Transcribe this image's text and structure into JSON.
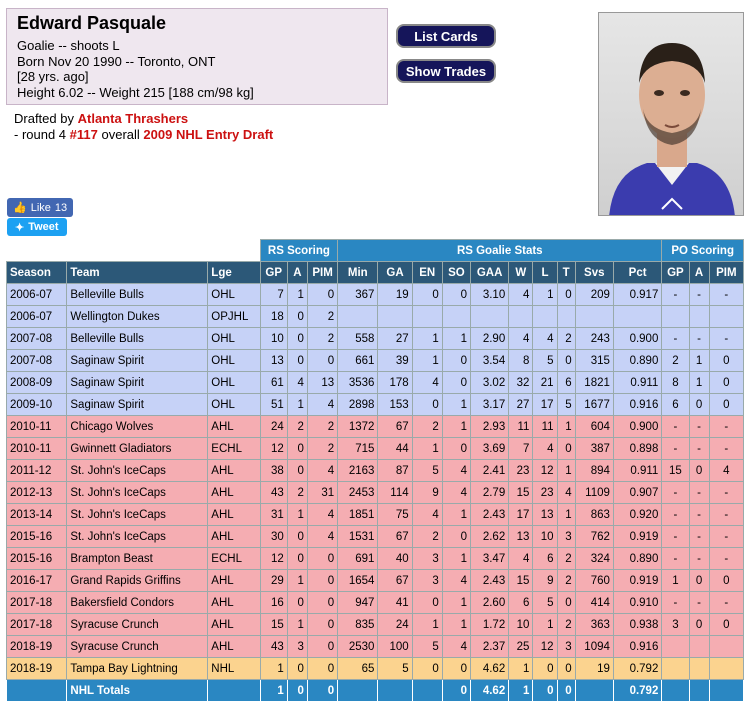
{
  "player": {
    "name": "Edward Pasquale",
    "position_line": "Goalie -- shoots L",
    "born_line": "Born Nov 20 1990 -- Toronto, ONT",
    "age_line": "[28 yrs. ago]",
    "size_line": "Height 6.02 -- Weight 215 [188 cm/98 kg]"
  },
  "draft": {
    "prefix": "Drafted by",
    "team": "Atlanta Thrashers",
    "round_text": "- round 4",
    "pick": "#117",
    "overall": "overall",
    "draft_name": "2009 NHL Entry Draft"
  },
  "buttons": {
    "list_cards": "List Cards",
    "show_trades": "Show Trades"
  },
  "social": {
    "like_label": "Like",
    "like_count": "13",
    "tweet_label": "Tweet"
  },
  "table": {
    "groups": {
      "rs_scoring": "RS Scoring",
      "rs_goalie": "RS Goalie Stats",
      "po_scoring": "PO Scoring"
    },
    "headers": [
      "Season",
      "Team",
      "Lge",
      "GP",
      "A",
      "PIM",
      "Min",
      "GA",
      "EN",
      "SO",
      "GAA",
      "W",
      "L",
      "T",
      "Svs",
      "Pct",
      "GP",
      "A",
      "PIM"
    ],
    "rows": [
      {
        "cls": "ohl",
        "c": [
          "2006-07",
          "Belleville Bulls",
          "OHL",
          "7",
          "1",
          "0",
          "367",
          "19",
          "0",
          "0",
          "3.10",
          "4",
          "1",
          "0",
          "209",
          "0.917",
          "-",
          "-",
          "-"
        ]
      },
      {
        "cls": "opj",
        "c": [
          "2006-07",
          "Wellington Dukes",
          "OPJHL",
          "18",
          "0",
          "2",
          "",
          "",
          "",
          "",
          "",
          "",
          "",
          "",
          "",
          "",
          "",
          "",
          ""
        ]
      },
      {
        "cls": "ohl",
        "c": [
          "2007-08",
          "Belleville Bulls",
          "OHL",
          "10",
          "0",
          "2",
          "558",
          "27",
          "1",
          "1",
          "2.90",
          "4",
          "4",
          "2",
          "243",
          "0.900",
          "-",
          "-",
          "-"
        ]
      },
      {
        "cls": "ohl",
        "c": [
          "2007-08",
          "Saginaw Spirit",
          "OHL",
          "13",
          "0",
          "0",
          "661",
          "39",
          "1",
          "0",
          "3.54",
          "8",
          "5",
          "0",
          "315",
          "0.890",
          "2",
          "1",
          "0"
        ]
      },
      {
        "cls": "ohl",
        "c": [
          "2008-09",
          "Saginaw Spirit",
          "OHL",
          "61",
          "4",
          "13",
          "3536",
          "178",
          "4",
          "0",
          "3.02",
          "32",
          "21",
          "6",
          "1821",
          "0.911",
          "8",
          "1",
          "0"
        ]
      },
      {
        "cls": "ohl",
        "c": [
          "2009-10",
          "Saginaw Spirit",
          "OHL",
          "51",
          "1",
          "4",
          "2898",
          "153",
          "0",
          "1",
          "3.17",
          "27",
          "17",
          "5",
          "1677",
          "0.916",
          "6",
          "0",
          "0"
        ]
      },
      {
        "cls": "ahl",
        "c": [
          "2010-11",
          "Chicago Wolves",
          "AHL",
          "24",
          "2",
          "2",
          "1372",
          "67",
          "2",
          "1",
          "2.93",
          "11",
          "11",
          "1",
          "604",
          "0.900",
          "-",
          "-",
          "-"
        ]
      },
      {
        "cls": "echl",
        "c": [
          "2010-11",
          "Gwinnett Gladiators",
          "ECHL",
          "12",
          "0",
          "2",
          "715",
          "44",
          "1",
          "0",
          "3.69",
          "7",
          "4",
          "0",
          "387",
          "0.898",
          "-",
          "-",
          "-"
        ]
      },
      {
        "cls": "ahl",
        "c": [
          "2011-12",
          "St. John's IceCaps",
          "AHL",
          "38",
          "0",
          "4",
          "2163",
          "87",
          "5",
          "4",
          "2.41",
          "23",
          "12",
          "1",
          "894",
          "0.911",
          "15",
          "0",
          "4"
        ]
      },
      {
        "cls": "ahl",
        "c": [
          "2012-13",
          "St. John's IceCaps",
          "AHL",
          "43",
          "2",
          "31",
          "2453",
          "114",
          "9",
          "4",
          "2.79",
          "15",
          "23",
          "4",
          "1109",
          "0.907",
          "-",
          "-",
          "-"
        ]
      },
      {
        "cls": "ahl",
        "c": [
          "2013-14",
          "St. John's IceCaps",
          "AHL",
          "31",
          "1",
          "4",
          "1851",
          "75",
          "4",
          "1",
          "2.43",
          "17",
          "13",
          "1",
          "863",
          "0.920",
          "-",
          "-",
          "-"
        ]
      },
      {
        "cls": "ahl",
        "c": [
          "2015-16",
          "St. John's IceCaps",
          "AHL",
          "30",
          "0",
          "4",
          "1531",
          "67",
          "2",
          "0",
          "2.62",
          "13",
          "10",
          "3",
          "762",
          "0.919",
          "-",
          "-",
          "-"
        ]
      },
      {
        "cls": "echl",
        "c": [
          "2015-16",
          "Brampton Beast",
          "ECHL",
          "12",
          "0",
          "0",
          "691",
          "40",
          "3",
          "1",
          "3.47",
          "4",
          "6",
          "2",
          "324",
          "0.890",
          "-",
          "-",
          "-"
        ]
      },
      {
        "cls": "ahl",
        "c": [
          "2016-17",
          "Grand Rapids Griffins",
          "AHL",
          "29",
          "1",
          "0",
          "1654",
          "67",
          "3",
          "4",
          "2.43",
          "15",
          "9",
          "2",
          "760",
          "0.919",
          "1",
          "0",
          "0"
        ]
      },
      {
        "cls": "ahl",
        "c": [
          "2017-18",
          "Bakersfield Condors",
          "AHL",
          "16",
          "0",
          "0",
          "947",
          "41",
          "0",
          "1",
          "2.60",
          "6",
          "5",
          "0",
          "414",
          "0.910",
          "-",
          "-",
          "-"
        ]
      },
      {
        "cls": "ahl",
        "c": [
          "2017-18",
          "Syracuse Crunch",
          "AHL",
          "15",
          "1",
          "0",
          "835",
          "24",
          "1",
          "1",
          "1.72",
          "10",
          "1",
          "2",
          "363",
          "0.938",
          "3",
          "0",
          "0"
        ]
      },
      {
        "cls": "ahl",
        "c": [
          "2018-19",
          "Syracuse Crunch",
          "AHL",
          "43",
          "3",
          "0",
          "2530",
          "100",
          "5",
          "4",
          "2.37",
          "25",
          "12",
          "3",
          "1094",
          "0.916",
          "",
          "",
          ""
        ]
      },
      {
        "cls": "nhl",
        "c": [
          "2018-19",
          "Tampa Bay Lightning",
          "NHL",
          "1",
          "0",
          "0",
          "65",
          "5",
          "0",
          "0",
          "4.62",
          "1",
          "0",
          "0",
          "19",
          "0.792",
          "",
          "",
          ""
        ]
      }
    ],
    "totals": [
      "",
      "NHL Totals",
      "",
      "1",
      "0",
      "0",
      "",
      "",
      "",
      "0",
      "4.62",
      "1",
      "0",
      "0",
      "",
      "0.792",
      "",
      "",
      ""
    ]
  }
}
